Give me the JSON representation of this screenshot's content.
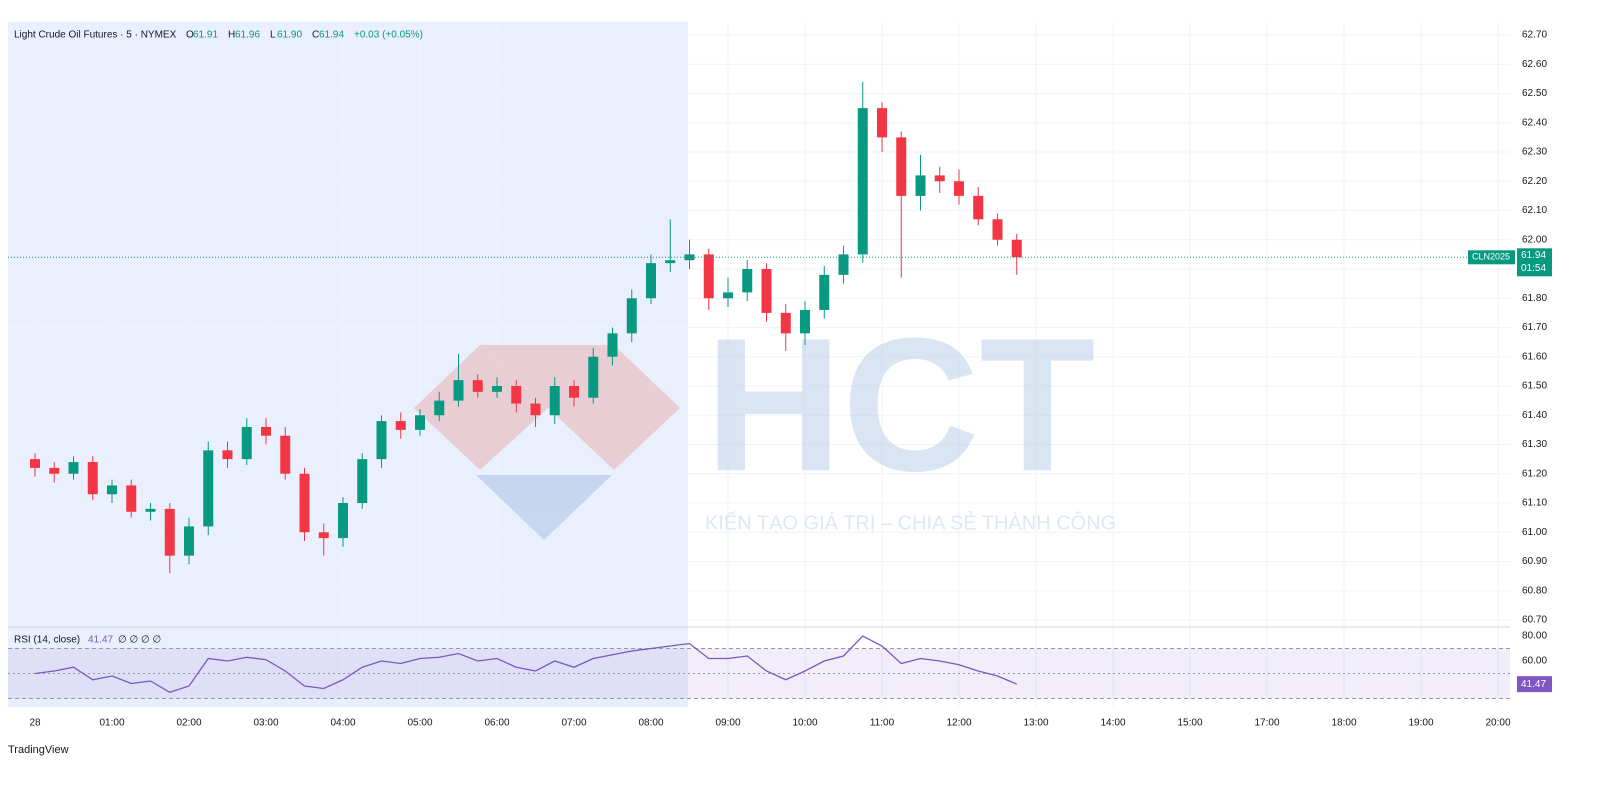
{
  "chart_data": {
    "type": "candlestick",
    "title": "Light Crude Oil Futures · 5 · NYMEX",
    "header_stats": [
      {
        "label": "O",
        "value": "61.91"
      },
      {
        "label": "H",
        "value": "61.96"
      },
      {
        "label": "L",
        "value": "61.90"
      },
      {
        "label": "C",
        "value": "61.94"
      }
    ],
    "header_change": "+0.03 (+0.05%)",
    "x": [
      "00:00",
      "00:15",
      "00:30",
      "00:45",
      "01:00",
      "01:15",
      "01:30",
      "01:45",
      "02:00",
      "02:15",
      "02:30",
      "02:45",
      "03:00",
      "03:15",
      "03:30",
      "03:45",
      "04:00",
      "04:15",
      "04:30",
      "04:45",
      "05:00",
      "05:15",
      "05:30",
      "05:45",
      "06:00",
      "06:15",
      "06:30",
      "06:45",
      "07:00",
      "07:15",
      "07:30",
      "07:45",
      "08:00",
      "08:15",
      "08:30",
      "08:45",
      "09:00",
      "09:15",
      "09:30",
      "09:45",
      "10:00",
      "10:15",
      "10:30",
      "10:45",
      "11:00",
      "11:15",
      "11:30",
      "11:45",
      "12:00",
      "12:15",
      "12:30",
      "12:45"
    ],
    "open": [
      61.25,
      61.22,
      61.2,
      61.24,
      61.13,
      61.16,
      61.07,
      61.08,
      60.92,
      61.02,
      61.28,
      61.25,
      61.36,
      61.33,
      61.2,
      61.0,
      60.98,
      61.1,
      61.25,
      61.38,
      61.35,
      61.4,
      61.45,
      61.52,
      61.48,
      61.5,
      61.44,
      61.4,
      61.5,
      61.46,
      61.6,
      61.68,
      61.8,
      61.92,
      61.93,
      61.95,
      61.8,
      61.82,
      61.9,
      61.75,
      61.68,
      61.76,
      61.88,
      61.95,
      62.45,
      62.35,
      62.15,
      62.22,
      62.2,
      62.15,
      62.07,
      62.0
    ],
    "high": [
      61.27,
      61.24,
      61.26,
      61.26,
      61.18,
      61.18,
      61.1,
      61.1,
      61.05,
      61.31,
      61.31,
      61.39,
      61.39,
      61.36,
      61.22,
      61.03,
      61.12,
      61.27,
      61.4,
      61.41,
      61.42,
      61.48,
      61.61,
      61.54,
      61.53,
      61.52,
      61.46,
      61.53,
      61.52,
      61.63,
      61.7,
      61.83,
      61.95,
      62.07,
      62.0,
      61.97,
      61.87,
      61.93,
      61.92,
      61.78,
      61.79,
      61.91,
      61.98,
      62.54,
      62.47,
      62.37,
      62.29,
      62.25,
      62.24,
      62.18,
      62.09,
      62.02
    ],
    "low": [
      61.19,
      61.17,
      61.18,
      61.11,
      61.1,
      61.05,
      61.04,
      60.86,
      60.89,
      60.99,
      61.22,
      61.23,
      61.3,
      61.18,
      60.97,
      60.92,
      60.95,
      61.08,
      61.22,
      61.32,
      61.33,
      61.38,
      61.43,
      61.46,
      61.46,
      61.41,
      61.36,
      61.37,
      61.43,
      61.44,
      61.57,
      61.65,
      61.78,
      61.89,
      61.9,
      61.76,
      61.77,
      61.79,
      61.72,
      61.62,
      61.64,
      61.73,
      61.85,
      61.92,
      62.3,
      61.87,
      62.1,
      62.16,
      62.12,
      62.05,
      61.98,
      61.88
    ],
    "close": [
      61.22,
      61.2,
      61.24,
      61.13,
      61.16,
      61.07,
      61.08,
      60.92,
      61.02,
      61.28,
      61.25,
      61.36,
      61.33,
      61.2,
      61.0,
      60.98,
      61.1,
      61.25,
      61.38,
      61.35,
      61.4,
      61.45,
      61.52,
      61.48,
      61.5,
      61.44,
      61.4,
      61.5,
      61.46,
      61.6,
      61.68,
      61.8,
      61.92,
      61.93,
      61.95,
      61.8,
      61.82,
      61.9,
      61.75,
      61.68,
      61.76,
      61.88,
      61.95,
      62.45,
      62.35,
      62.15,
      62.22,
      62.2,
      62.15,
      62.07,
      62.0,
      61.94
    ],
    "up_color": "#089981",
    "down_color": "#f23645",
    "ylim": [
      60.7,
      62.7
    ],
    "yticks": [
      {
        "value": 60.7,
        "label": "60.70"
      },
      {
        "value": 60.8,
        "label": "60.80"
      },
      {
        "value": 60.9,
        "label": "60.90"
      },
      {
        "value": 61.0,
        "label": "61.00"
      },
      {
        "value": 61.1,
        "label": "61.10"
      },
      {
        "value": 61.2,
        "label": "61.20"
      },
      {
        "value": 61.3,
        "label": "61.30"
      },
      {
        "value": 61.4,
        "label": "61.40"
      },
      {
        "value": 61.5,
        "label": "61.50"
      },
      {
        "value": 61.6,
        "label": "61.60"
      },
      {
        "value": 61.7,
        "label": "61.70"
      },
      {
        "value": 61.8,
        "label": "61.80"
      },
      {
        "value": 61.9,
        "label": "61.90"
      },
      {
        "value": 62.0,
        "label": "62.00"
      },
      {
        "value": 62.1,
        "label": "62.10"
      },
      {
        "value": 62.2,
        "label": "62.20"
      },
      {
        "value": 62.3,
        "label": "62.30"
      },
      {
        "value": 62.4,
        "label": "62.40"
      },
      {
        "value": 62.5,
        "label": "62.50"
      },
      {
        "value": 62.6,
        "label": "62.60"
      },
      {
        "value": 62.7,
        "label": "62.70"
      }
    ],
    "xtick_labels": [
      "28",
      "01:00",
      "02:00",
      "03:00",
      "04:00",
      "05:00",
      "06:00",
      "07:00",
      "08:00",
      "09:00",
      "10:00",
      "11:00",
      "12:00",
      "13:00",
      "14:00",
      "15:00",
      "17:00",
      "18:00",
      "19:00",
      "20:00"
    ],
    "last_price": {
      "symbol": "CLN2025",
      "value": 61.94,
      "label": "61.94",
      "countdown": "01:54"
    },
    "grid": true,
    "rsi": {
      "title": "RSI (14, close)",
      "extras": "∅ ∅ ∅ ∅",
      "color": "#7e57c2",
      "values": [
        50,
        52,
        55,
        45,
        48,
        42,
        44,
        35,
        40,
        62,
        60,
        63,
        61,
        52,
        40,
        38,
        45,
        55,
        60,
        58,
        62,
        63,
        66,
        60,
        62,
        55,
        52,
        60,
        55,
        62,
        65,
        68,
        70,
        72,
        74,
        62,
        62,
        64,
        52,
        45,
        52,
        60,
        64,
        80,
        72,
        58,
        62,
        60,
        57,
        52,
        48,
        41.47
      ],
      "ylim": [
        22.4,
        86.4
      ],
      "yticks": [
        {
          "value": 80,
          "label": "80.00"
        },
        {
          "value": 60,
          "label": "60.00"
        }
      ],
      "band": [
        30,
        70
      ],
      "mid": 50
    },
    "watermark": {
      "logo": "HCT",
      "slogan": "KIẾN TẠO GIÁ TRỊ – CHIA SẺ THÀNH CÔNG"
    },
    "brand": "TradingView"
  }
}
